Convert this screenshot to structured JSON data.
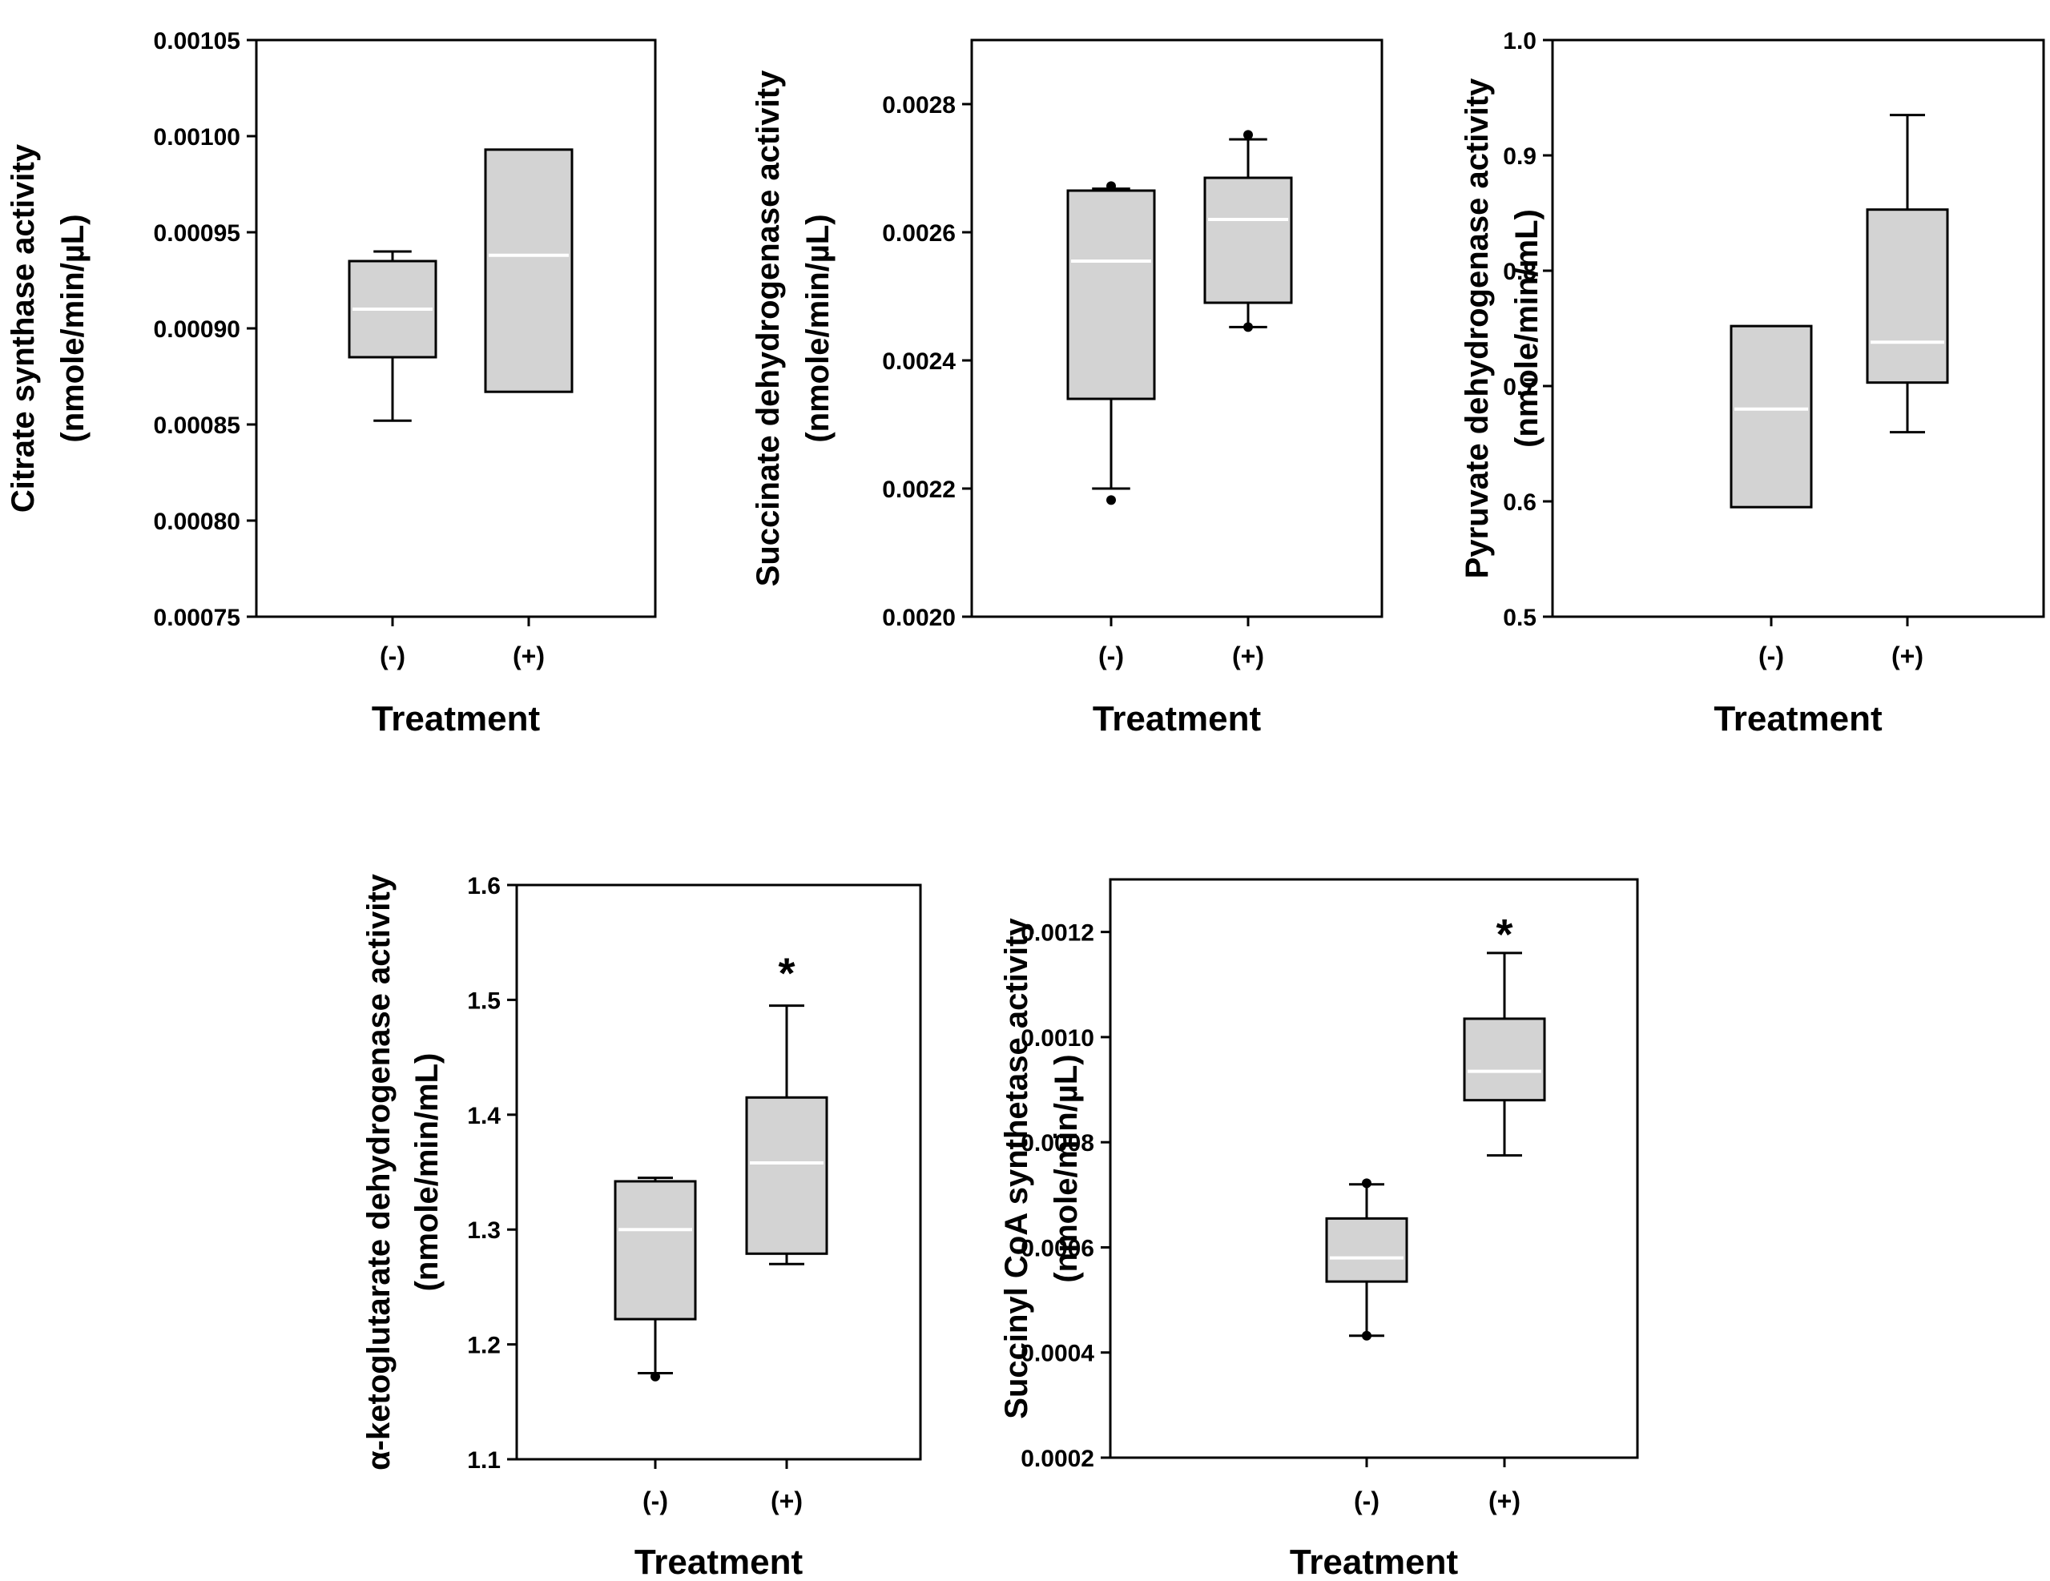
{
  "chart_data": [
    {
      "type": "box",
      "title": "",
      "ylabel_line1": "Citrate synthase activity",
      "ylabel_line2": "(nmole/min/µL)",
      "xlabel": "Treatment",
      "categories": [
        "(-)",
        "(+)"
      ],
      "ylim": [
        0.00075,
        0.00105
      ],
      "yticks": [
        "0.00075",
        "0.00080",
        "0.00085",
        "0.00090",
        "0.00095",
        "0.00100",
        "0.00105"
      ],
      "boxes": [
        {
          "whisker_low": 0.000852,
          "q1": 0.000885,
          "median": 0.00091,
          "q3": 0.000935,
          "whisker_high": 0.00094,
          "outliers": []
        },
        {
          "whisker_low": null,
          "q1": 0.000867,
          "median": 0.000938,
          "q3": 0.000993,
          "whisker_high": null,
          "outliers": []
        }
      ],
      "annotations": []
    },
    {
      "type": "box",
      "title": "",
      "ylabel_line1": "Succinate dehydrogenase activity",
      "ylabel_line2": "(nmole/min/µL)",
      "xlabel": "Treatment",
      "categories": [
        "(-)",
        "(+)"
      ],
      "ylim": [
        0.002,
        0.0029
      ],
      "yticks": [
        "0.0020",
        "0.0022",
        "0.0024",
        "0.0026",
        "0.0028"
      ],
      "boxes": [
        {
          "whisker_low": 0.0022,
          "q1": 0.00234,
          "median": 0.002555,
          "q3": 0.002665,
          "whisker_high": 0.002668,
          "outliers": [
            0.002182,
            0.002672
          ]
        },
        {
          "whisker_low": 0.002452,
          "q1": 0.00249,
          "median": 0.00262,
          "q3": 0.002685,
          "whisker_high": 0.002745,
          "outliers": [
            0.002452,
            0.002752
          ]
        }
      ],
      "annotations": []
    },
    {
      "type": "box",
      "title": "",
      "ylabel_line1": "Pyruvate dehydrogenase activity",
      "ylabel_line2": "(nmole/min/mL)",
      "xlabel": "Treatment",
      "categories": [
        "(-)",
        "(+)"
      ],
      "ylim": [
        0.5,
        1.0
      ],
      "yticks": [
        "0.5",
        "0.6",
        "0.7",
        "0.8",
        "0.9",
        "1.0"
      ],
      "boxes": [
        {
          "whisker_low": null,
          "q1": 0.595,
          "median": 0.68,
          "q3": 0.752,
          "whisker_high": null,
          "outliers": []
        },
        {
          "whisker_low": 0.66,
          "q1": 0.703,
          "median": 0.738,
          "q3": 0.853,
          "whisker_high": 0.935,
          "outliers": []
        }
      ],
      "annotations": []
    },
    {
      "type": "box",
      "title": "",
      "ylabel_line1": "α-ketoglutarate dehydrogenase activity",
      "ylabel_line2": "(nmole/min/mL)",
      "xlabel": "Treatment",
      "categories": [
        "(-)",
        "(+)"
      ],
      "ylim": [
        1.1,
        1.6
      ],
      "yticks": [
        "1.1",
        "1.2",
        "1.3",
        "1.4",
        "1.5",
        "1.6"
      ],
      "boxes": [
        {
          "whisker_low": 1.175,
          "q1": 1.222,
          "median": 1.3,
          "q3": 1.342,
          "whisker_high": 1.345,
          "outliers": [
            1.172
          ]
        },
        {
          "whisker_low": 1.27,
          "q1": 1.279,
          "median": 1.358,
          "q3": 1.415,
          "whisker_high": 1.495,
          "outliers": []
        }
      ],
      "annotations": [
        {
          "category": "(+)",
          "text": "*",
          "y": 1.53
        }
      ]
    },
    {
      "type": "box",
      "title": "",
      "ylabel_line1": "Succinyl CoA synthetase activity",
      "ylabel_line2": "(nmole/min/µL)",
      "xlabel": "Treatment",
      "categories": [
        "(-)",
        "(+)"
      ],
      "ylim": [
        0.0002,
        0.0013
      ],
      "yticks": [
        "0.0002",
        "0.0004",
        "0.0006",
        "0.0008",
        "0.0010",
        "0.0012"
      ],
      "boxes": [
        {
          "whisker_low": 0.000432,
          "q1": 0.000535,
          "median": 0.00058,
          "q3": 0.000655,
          "whisker_high": 0.00072,
          "outliers": [
            0.000432,
            0.000722
          ]
        },
        {
          "whisker_low": 0.000775,
          "q1": 0.00088,
          "median": 0.000935,
          "q3": 0.001035,
          "whisker_high": 0.00116,
          "outliers": []
        }
      ],
      "annotations": [
        {
          "category": "(+)",
          "text": "*",
          "y": 0.00121
        }
      ]
    }
  ]
}
